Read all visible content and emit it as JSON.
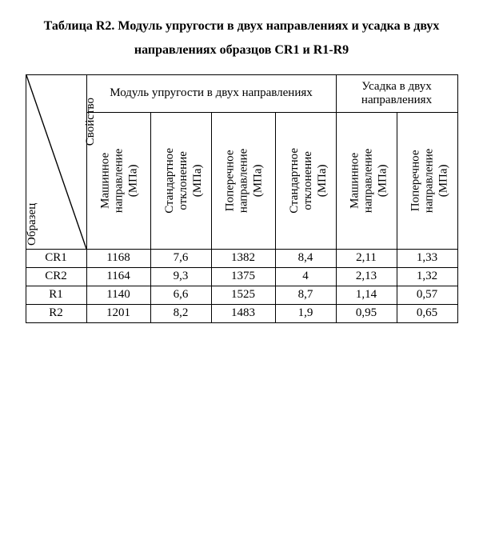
{
  "title": "Таблица R2. Модуль упругости в двух направлениях и усадка в двух направлениях образцов CR1 и R1-R9",
  "diagHeader": {
    "top": "Свойство",
    "bottom": "Образец"
  },
  "group1": "Модуль упругости в двух направлениях",
  "group2": "Усадка в двух\nнаправлениях",
  "cats": [
    "Машинное\nнаправление\n(МПа)",
    "Стандартное\nотклонение\n(МПа)",
    "Поперечное\nнаправление\n(МПа)",
    "Стандартное\nотклонение\n(МПа)",
    "Машинное\nнаправление\n(МПа)",
    "Поперечное\nнаправление\n(МПа)"
  ],
  "rows": [
    {
      "label": "CR1",
      "v": [
        "1168",
        "7,6",
        "1382",
        "8,4",
        "2,11",
        "1,33"
      ]
    },
    {
      "label": "CR2",
      "v": [
        "1164",
        "9,3",
        "1375",
        "4",
        "2,13",
        "1,32"
      ]
    },
    {
      "label": "R1",
      "v": [
        "1140",
        "6,6",
        "1525",
        "8,7",
        "1,14",
        "0,57"
      ]
    },
    {
      "label": "R2",
      "v": [
        "1201",
        "8,2",
        "1483",
        "1,9",
        "0,95",
        "0,65"
      ]
    }
  ]
}
